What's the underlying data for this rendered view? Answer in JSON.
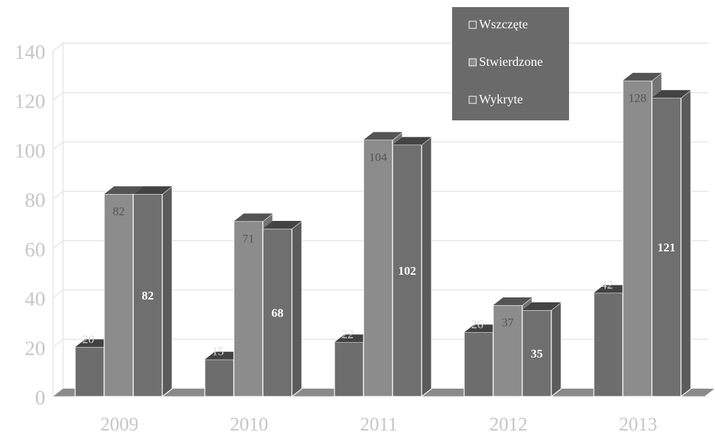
{
  "chart_data": {
    "type": "bar",
    "categories": [
      "2009",
      "2010",
      "2011",
      "2012",
      "2013"
    ],
    "series": [
      {
        "name": "Wszczęte",
        "values": [
          20,
          15,
          22,
          26,
          42
        ]
      },
      {
        "name": "Stwierdzone",
        "values": [
          82,
          71,
          104,
          37,
          128
        ]
      },
      {
        "name": "Wykryte",
        "values": [
          82,
          68,
          102,
          35,
          121
        ]
      }
    ],
    "ylim": [
      0,
      140
    ],
    "yticks": [
      0,
      20,
      40,
      60,
      80,
      100,
      120,
      140
    ],
    "grid": true,
    "legend_position": "top-right",
    "three_d": true
  },
  "colors": {
    "Wszczęte": "#6d6d6d",
    "Stwierdzone": "#8c8c8c",
    "Wykryte": "#6f6f6f",
    "legend_bg": "#6a6a6a",
    "grid": "#e6e6e6",
    "tick_text": "#c6c6c6",
    "label_dark": "#555555",
    "label_light": "#ffffff"
  }
}
